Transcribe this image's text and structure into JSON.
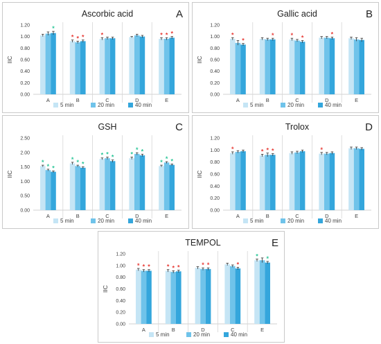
{
  "chart_data": [
    {
      "type": "bar",
      "letter": "A",
      "title": "Ascorbic acid",
      "ylabel": "IIC",
      "ylim": [
        0,
        1.2
      ],
      "yticks": [
        "0.00",
        "0.20",
        "0.40",
        "0.60",
        "0.80",
        "1.00",
        "1.20"
      ],
      "categories": [
        "A",
        "B",
        "C",
        "D",
        "E"
      ],
      "series": [
        {
          "name": "5 min",
          "values": [
            1.02,
            0.92,
            0.96,
            0.99,
            0.96
          ],
          "errors": [
            0.02,
            0.02,
            0.02,
            0.01,
            0.02
          ],
          "stars": [
            "",
            "red",
            "red",
            "",
            "red"
          ]
        },
        {
          "name": "20 min",
          "values": [
            1.05,
            0.9,
            0.97,
            1.02,
            0.96
          ],
          "errors": [
            0.03,
            0.02,
            0.02,
            0.02,
            0.02
          ],
          "stars": [
            "",
            "red",
            "",
            "",
            "red"
          ]
        },
        {
          "name": "40 min",
          "values": [
            1.06,
            0.92,
            0.97,
            1.0,
            0.98
          ],
          "errors": [
            0.03,
            0.02,
            0.02,
            0.02,
            0.02
          ],
          "stars": [
            "green",
            "red",
            "",
            "",
            "red"
          ]
        }
      ]
    },
    {
      "type": "bar",
      "letter": "B",
      "title": "Gallic acid",
      "ylabel": "IIC",
      "ylim": [
        0,
        1.2
      ],
      "yticks": [
        "0.00",
        "0.20",
        "0.40",
        "0.60",
        "0.80",
        "1.00",
        "1.20"
      ],
      "categories": [
        "A",
        "B",
        "C",
        "D",
        "E"
      ],
      "series": [
        {
          "name": "5 min",
          "values": [
            0.96,
            0.96,
            0.95,
            0.98,
            0.97
          ],
          "errors": [
            0.02,
            0.02,
            0.02,
            0.02,
            0.02
          ],
          "stars": [
            "red",
            "",
            "red",
            "",
            ""
          ]
        },
        {
          "name": "20 min",
          "values": [
            0.89,
            0.95,
            0.93,
            0.98,
            0.95
          ],
          "errors": [
            0.04,
            0.02,
            0.02,
            0.02,
            0.03
          ],
          "stars": [
            "",
            "",
            "",
            "",
            ""
          ]
        },
        {
          "name": "40 min",
          "values": [
            0.86,
            0.95,
            0.91,
            0.97,
            0.94
          ],
          "errors": [
            0.02,
            0.02,
            0.02,
            0.02,
            0.03
          ],
          "stars": [
            "red",
            "red",
            "red",
            "red",
            ""
          ]
        }
      ]
    },
    {
      "type": "bar",
      "letter": "C",
      "title": "GSH",
      "ylabel": "IIC",
      "ylim": [
        0,
        2.5
      ],
      "yticks": [
        "0.00",
        "0.50",
        "1.00",
        "1.50",
        "2.00",
        "2.50"
      ],
      "categories": [
        "A",
        "B",
        "C",
        "D",
        "E"
      ],
      "series": [
        {
          "name": "5 min",
          "values": [
            1.53,
            1.62,
            1.78,
            1.8,
            1.53
          ],
          "errors": [
            0.03,
            0.04,
            0.03,
            0.04,
            0.03
          ],
          "stars": [
            "green",
            "green",
            "green",
            "green",
            "green"
          ]
        },
        {
          "name": "20 min",
          "values": [
            1.39,
            1.53,
            1.8,
            1.95,
            1.65
          ],
          "errors": [
            0.03,
            0.03,
            0.04,
            0.04,
            0.03
          ],
          "stars": [
            "green",
            "green",
            "green",
            "green",
            "green"
          ]
        },
        {
          "name": "40 min",
          "values": [
            1.33,
            1.47,
            1.7,
            1.9,
            1.57
          ],
          "errors": [
            0.03,
            0.03,
            0.04,
            0.04,
            0.03
          ],
          "stars": [
            "green",
            "green",
            "green",
            "green",
            "green"
          ]
        }
      ]
    },
    {
      "type": "bar",
      "letter": "D",
      "title": "Trolox",
      "ylabel": "IIC",
      "ylim": [
        0,
        1.2
      ],
      "yticks": [
        "0.00",
        "0.20",
        "0.40",
        "0.60",
        "0.80",
        "1.00",
        "1.20"
      ],
      "categories": [
        "A",
        "B",
        "C",
        "D",
        "E"
      ],
      "series": [
        {
          "name": "5 min",
          "values": [
            0.95,
            0.91,
            0.95,
            0.94,
            1.03
          ],
          "errors": [
            0.02,
            0.02,
            0.02,
            0.02,
            0.02
          ],
          "stars": [
            "red",
            "red",
            "",
            "red",
            ""
          ]
        },
        {
          "name": "20 min",
          "values": [
            0.97,
            0.92,
            0.96,
            0.94,
            1.03
          ],
          "errors": [
            0.02,
            0.03,
            0.02,
            0.02,
            0.02
          ],
          "stars": [
            "",
            "red",
            "",
            "",
            ""
          ]
        },
        {
          "name": "40 min",
          "values": [
            0.98,
            0.92,
            0.98,
            0.95,
            1.02
          ],
          "errors": [
            0.02,
            0.02,
            0.02,
            0.02,
            0.02
          ],
          "stars": [
            "",
            "red",
            "",
            "",
            ""
          ]
        }
      ]
    },
    {
      "type": "bar",
      "letter": "E",
      "title": "TEMPOL",
      "ylabel": "IIC",
      "ylim": [
        0,
        1.2
      ],
      "yticks": [
        "0.00",
        "0.20",
        "0.40",
        "0.60",
        "0.80",
        "1.00",
        "1.20"
      ],
      "categories": [
        "A",
        "B",
        "D",
        "C",
        "E"
      ],
      "series": [
        {
          "name": "5 min",
          "values": [
            0.93,
            0.91,
            0.96,
            1.02,
            1.09
          ],
          "errors": [
            0.02,
            0.02,
            0.02,
            0.02,
            0.02
          ],
          "stars": [
            "red",
            "red",
            "",
            "",
            "green"
          ]
        },
        {
          "name": "20 min",
          "values": [
            0.91,
            0.89,
            0.94,
            0.99,
            1.09
          ],
          "errors": [
            0.02,
            0.02,
            0.02,
            0.02,
            0.04
          ],
          "stars": [
            "red",
            "red",
            "red",
            "",
            ""
          ]
        },
        {
          "name": "40 min",
          "values": [
            0.91,
            0.9,
            0.94,
            0.95,
            1.05
          ],
          "errors": [
            0.02,
            0.02,
            0.02,
            0.02,
            0.02
          ],
          "stars": [
            "red",
            "red",
            "red",
            "red",
            "green"
          ]
        }
      ]
    }
  ],
  "colors": {
    "series": [
      "#c5e5f5",
      "#6fc3ea",
      "#34a6dc"
    ],
    "star_red": "#e8413c",
    "star_green": "#2ec79a",
    "axis": "#d0d0d0",
    "text": "#404040",
    "separator": "#d6d6d6"
  }
}
